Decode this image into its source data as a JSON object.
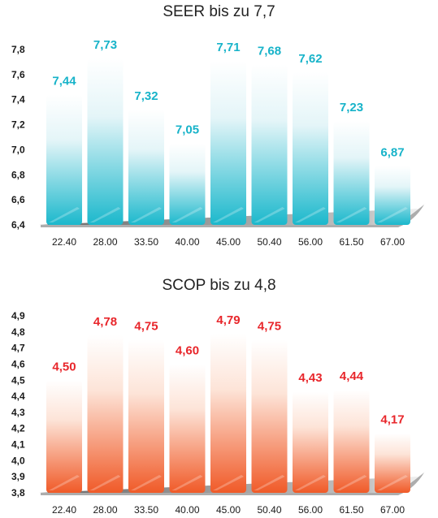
{
  "chart_data": [
    {
      "type": "bar",
      "title": "SEER bis zu 7,7",
      "categories": [
        "22.40",
        "28.00",
        "33.50",
        "40.00",
        "45.00",
        "50.40",
        "56.00",
        "61.50",
        "67.00"
      ],
      "values": [
        7.44,
        7.73,
        7.32,
        7.05,
        7.71,
        7.68,
        7.62,
        7.23,
        6.87
      ],
      "value_labels": [
        "7,44",
        "7,73",
        "7,32",
        "7,05",
        "7,71",
        "7,68",
        "7,62",
        "7,23",
        "6,87"
      ],
      "yticks": [
        "6,4",
        "6,6",
        "6,8",
        "7,0",
        "7,2",
        "7,4",
        "7,6",
        "7,8"
      ],
      "ylim": [
        6.4,
        7.8
      ],
      "color": "#1bb8cc",
      "label_color": "#17b3c9",
      "grid": false
    },
    {
      "type": "bar",
      "title": "SCOP bis zu 4,8",
      "categories": [
        "22.40",
        "28.00",
        "33.50",
        "40.00",
        "45.00",
        "50.40",
        "56.00",
        "61.50",
        "67.00"
      ],
      "values": [
        4.5,
        4.78,
        4.75,
        4.6,
        4.79,
        4.75,
        4.43,
        4.44,
        4.17
      ],
      "value_labels": [
        "4,50",
        "4,78",
        "4,75",
        "4,60",
        "4,79",
        "4,75",
        "4,43",
        "4,44",
        "4,17"
      ],
      "yticks": [
        "3,8",
        "3,9",
        "4,0",
        "4,1",
        "4,2",
        "4,3",
        "4,4",
        "4,5",
        "4,6",
        "4,7",
        "4,8",
        "4,9"
      ],
      "ylim": [
        3.8,
        4.9
      ],
      "color": "#f05a28",
      "label_color": "#e8262b",
      "grid": false
    }
  ]
}
